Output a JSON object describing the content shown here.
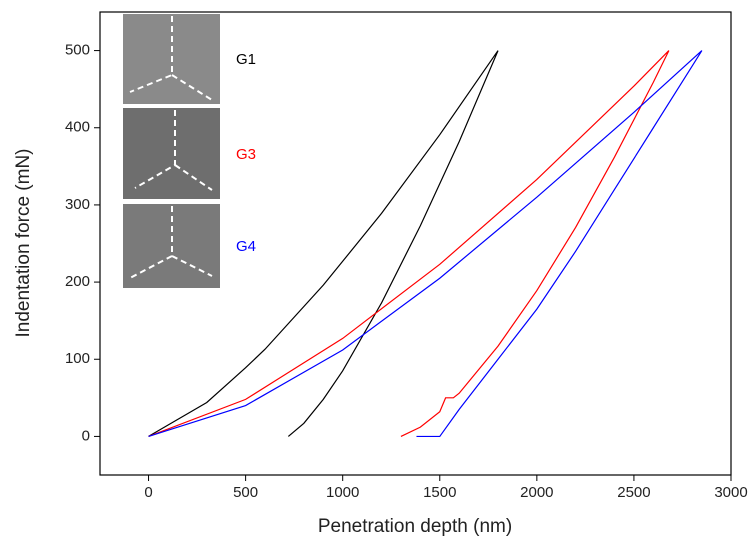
{
  "chart_data": {
    "type": "line",
    "x_label": "Penetration depth (nm)",
    "y_label": "Indentation force (mN)",
    "xlim": [
      -250,
      3000
    ],
    "xticks": [
      0,
      500,
      1000,
      1500,
      2000,
      2500,
      3000
    ],
    "ylim": [
      -50,
      550
    ],
    "yticks": [
      0,
      100,
      200,
      300,
      400,
      500
    ],
    "series": [
      {
        "name": "G1",
        "color": "#000000",
        "x": [
          0,
          300,
          500,
          600,
          900,
          1200,
          1500,
          1800,
          1600,
          1400,
          1200,
          1000,
          900,
          800,
          720
        ],
        "values": [
          0,
          44,
          89,
          113,
          196,
          289,
          391,
          500,
          382,
          273,
          173,
          85,
          48,
          17,
          0
        ]
      },
      {
        "name": "G3",
        "color": "#ff0000",
        "x": [
          0,
          500,
          1000,
          1500,
          2000,
          2500,
          2680,
          2600,
          2400,
          2200,
          2000,
          1800,
          1600,
          1570,
          1530,
          1500,
          1400,
          1300
        ],
        "values": [
          0,
          48,
          127,
          223,
          333,
          454,
          500,
          459,
          362,
          271,
          189,
          117,
          56,
          50,
          50,
          32,
          12,
          0
        ]
      },
      {
        "name": "G4",
        "color": "#0000ff",
        "x": [
          0,
          500,
          1000,
          1500,
          2000,
          2500,
          2850,
          2800,
          2600,
          2400,
          2200,
          2000,
          1800,
          1600,
          1500,
          1380
        ],
        "values": [
          0,
          40,
          112,
          205,
          310,
          420,
          500,
          480,
          400,
          320,
          240,
          165,
          100,
          35,
          0,
          0
        ]
      }
    ]
  }
}
